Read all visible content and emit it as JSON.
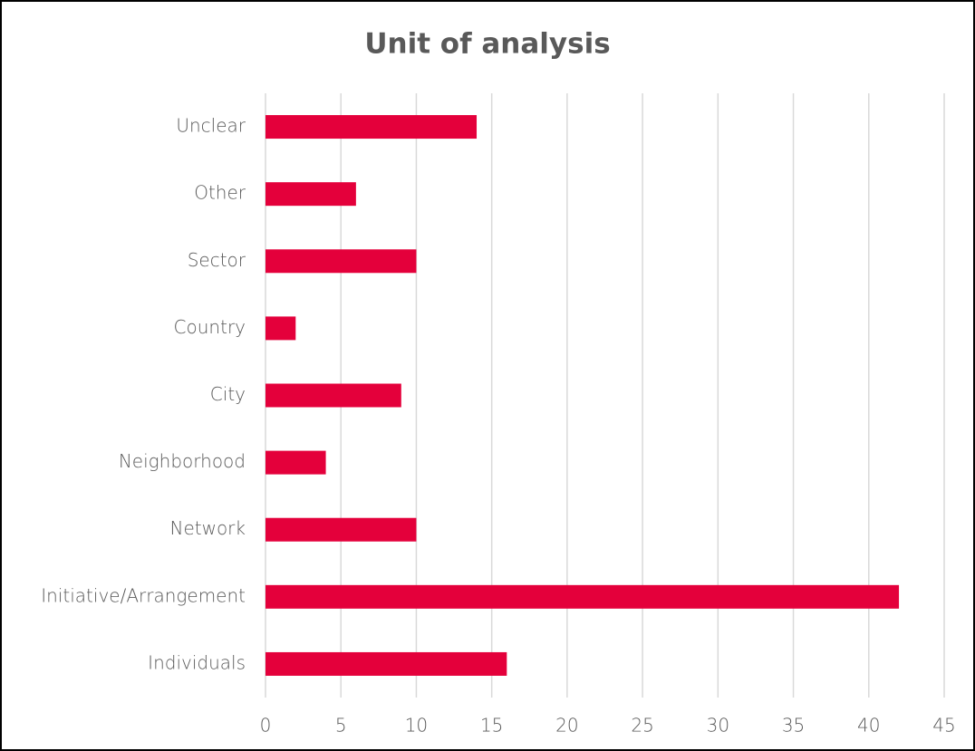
{
  "chart_data": {
    "type": "bar",
    "orientation": "horizontal",
    "title": "Unit of analysis",
    "categories": [
      "Unclear",
      "Other",
      "Sector",
      "Country",
      "City",
      "Neighborhood",
      "Network",
      "Initiative/Arrangement",
      "Individuals"
    ],
    "values": [
      14,
      6,
      10,
      2,
      9,
      4,
      10,
      42,
      16
    ],
    "color": "#e4003b",
    "xlim": [
      0,
      45
    ],
    "xticks": [
      0,
      5,
      10,
      15,
      20,
      25,
      30,
      35,
      40,
      45
    ],
    "grid": true
  }
}
